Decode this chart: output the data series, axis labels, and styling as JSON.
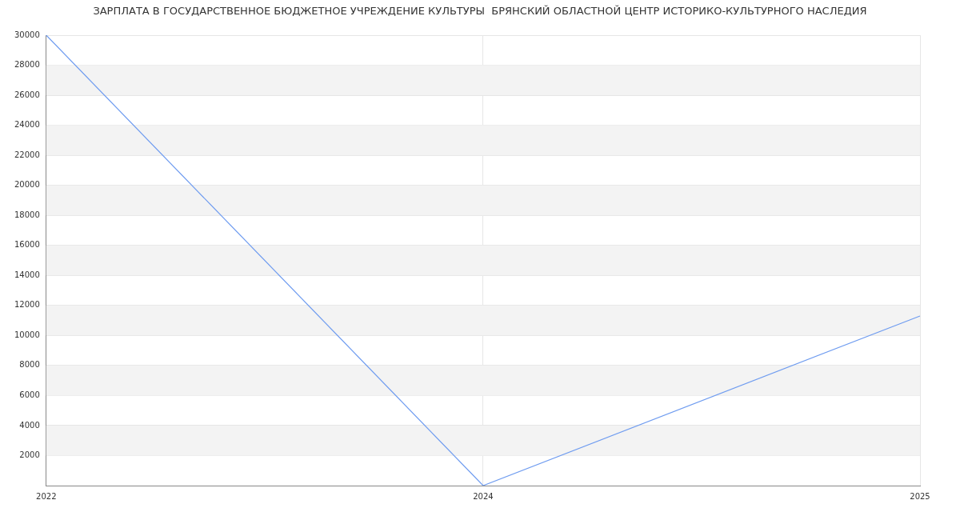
{
  "chart_data": {
    "type": "line",
    "title": "ЗАРПЛАТА В ГОСУДАРСТВЕННОЕ БЮДЖЕТНОЕ УЧРЕЖДЕНИЕ КУЛЬТУРЫ  БРЯНСКИЙ ОБЛАСТНОЙ ЦЕНТР ИСТОРИКО-КУЛЬТУРНОГО НАСЛЕДИЯ",
    "categories": [
      "2022",
      "2024",
      "2025"
    ],
    "series": [
      {
        "color": "#6f9cf0",
        "values": [
          30000,
          0,
          11300
        ]
      }
    ],
    "ylim": [
      0,
      30000
    ],
    "yticks": [
      2000,
      4000,
      6000,
      8000,
      10000,
      12000,
      14000,
      16000,
      18000,
      20000,
      22000,
      24000,
      26000,
      28000,
      30000
    ],
    "grid": true,
    "marker": "none",
    "line_style": "solid"
  }
}
